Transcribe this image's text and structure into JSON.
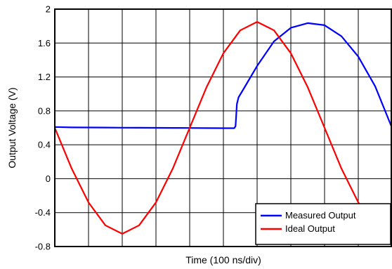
{
  "chart_data": {
    "type": "line",
    "title": "",
    "xlabel": "Time (100 ns/div)",
    "ylabel": "Output Voltage (V)",
    "ylim": [
      -0.8,
      2
    ],
    "yticks": [
      "2",
      "1.6",
      "1.2",
      "0.8",
      "0.4",
      "0",
      "-0.4",
      "-0.8"
    ],
    "xlim": [
      0,
      1000
    ],
    "x_divisions": 10,
    "grid": true,
    "legend_position": "bottom-right",
    "series": [
      {
        "name": "Measured Output",
        "color": "#0000ff",
        "x": [
          0,
          50,
          100,
          150,
          200,
          250,
          300,
          350,
          400,
          450,
          500,
          532,
          536,
          540,
          545,
          560,
          600,
          650,
          700,
          750,
          800,
          850,
          900,
          950,
          1000
        ],
        "y": [
          0.61,
          0.605,
          0.604,
          0.603,
          0.602,
          0.601,
          0.6,
          0.599,
          0.598,
          0.597,
          0.596,
          0.596,
          0.62,
          0.88,
          0.96,
          1.06,
          1.33,
          1.62,
          1.78,
          1.835,
          1.81,
          1.68,
          1.44,
          1.09,
          0.6
        ]
      },
      {
        "name": "Ideal Output",
        "color": "#ff0000",
        "x": [
          0,
          50,
          100,
          150,
          200,
          250,
          300,
          350,
          400,
          450,
          500,
          550,
          600,
          650,
          700,
          750,
          800,
          850,
          900,
          950,
          1000
        ],
        "y": [
          0.6,
          0.12,
          -0.28,
          -0.55,
          -0.65,
          -0.55,
          -0.28,
          0.12,
          0.6,
          1.08,
          1.48,
          1.75,
          1.85,
          1.75,
          1.48,
          1.08,
          0.6,
          0.12,
          -0.28,
          -0.55,
          -0.65
        ]
      }
    ]
  }
}
